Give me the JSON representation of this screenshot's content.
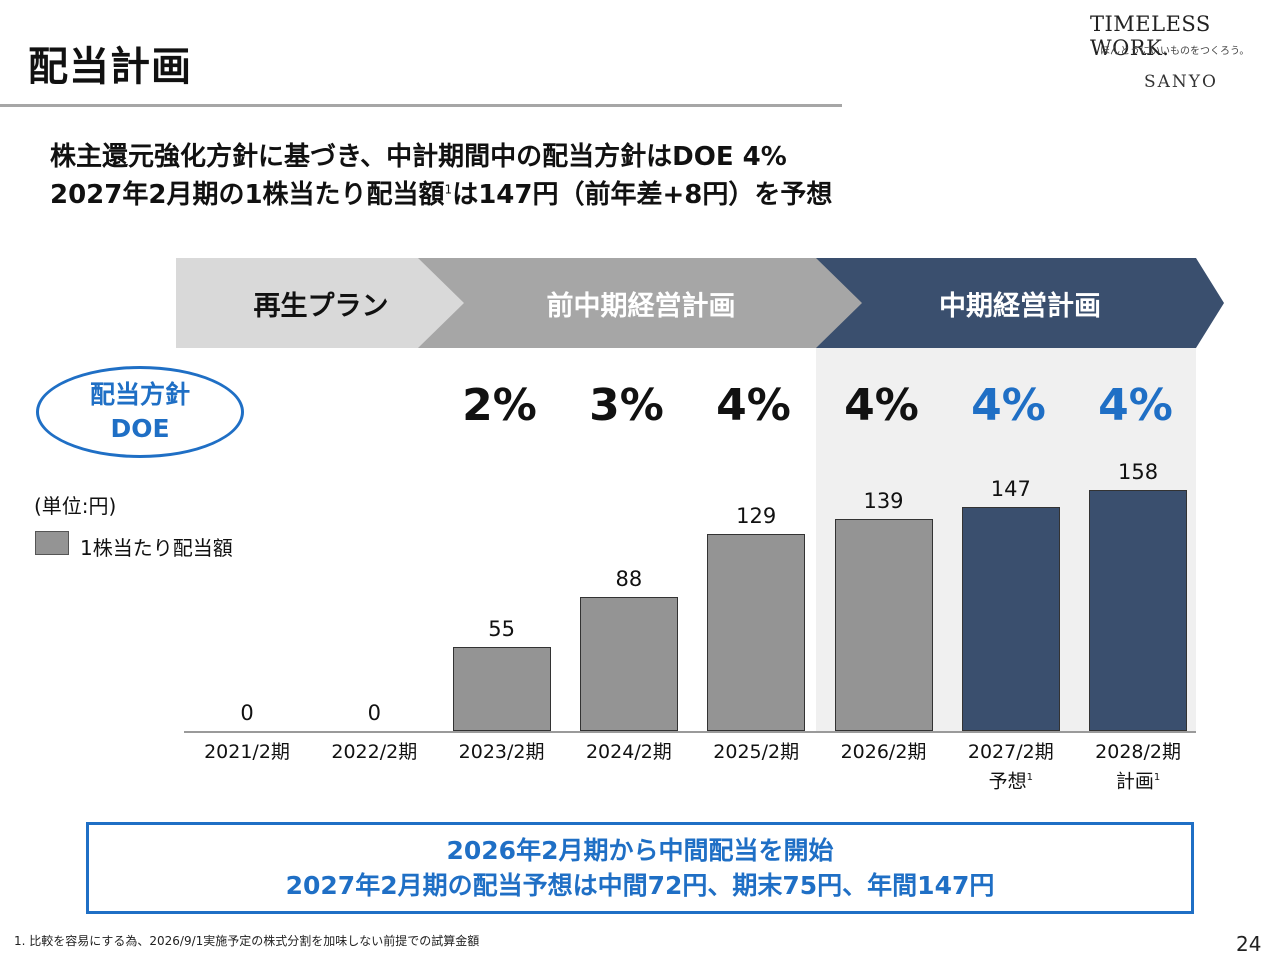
{
  "page": {
    "title": "配当計画",
    "page_number": "24",
    "footnote": "1. 比較を容易にする為、2026/9/1実施予定の株式分割を加味しない前提での試算金額"
  },
  "logo": {
    "brand": "TIMELESS WORK.",
    "tagline": "ほんとうにいいものをつくろう。",
    "company": "SANYO"
  },
  "headline": {
    "line1": "株主還元強化方針に基づき、中計期間中の配当方針はDOE 4%",
    "line2_part1": "2027年2月期の1株当たり配当額",
    "line2_sup": "1",
    "line2_part2": "は147円（前年差+8円）を予想"
  },
  "phases": [
    {
      "label": "再生プラン",
      "color": "#d9d9d9"
    },
    {
      "label": "前中期経営計画",
      "color": "#a6a6a6"
    },
    {
      "label": "中期経営計画",
      "color": "#3a4f6e"
    }
  ],
  "policy": {
    "line1": "配当方針",
    "line2": "DOE"
  },
  "unit_label": "(単位:円)",
  "legend_label": "1株当たり配当額",
  "doe_values": [
    {
      "value": "2%",
      "color": "#111111"
    },
    {
      "value": "3%",
      "color": "#111111"
    },
    {
      "value": "4%",
      "color": "#111111"
    },
    {
      "value": "4%",
      "color": "#111111"
    },
    {
      "value": "4%",
      "color": "#1f6fc5"
    },
    {
      "value": "4%",
      "color": "#1f6fc5"
    }
  ],
  "colors": {
    "bar_gray": "#949494",
    "bar_navy": "#3a4f6e",
    "accent_blue": "#1f6fc5"
  },
  "chart_data": {
    "type": "bar",
    "title": "",
    "categories": [
      "2021/2期",
      "2022/2期",
      "2023/2期",
      "2024/2期",
      "2025/2期",
      "2026/2期",
      "2027/2期",
      "2028/2期"
    ],
    "category_notes": [
      "",
      "",
      "",
      "",
      "",
      "",
      "予想",
      "計画"
    ],
    "category_note_sup": [
      "",
      "",
      "",
      "",
      "",
      "",
      "1",
      "1"
    ],
    "values": [
      0,
      0,
      55,
      88,
      129,
      139,
      147,
      158
    ],
    "value_labels": [
      "0",
      "0",
      "55",
      "88",
      "129",
      "139",
      "147",
      "158"
    ],
    "bar_colors": [
      "#949494",
      "#949494",
      "#949494",
      "#949494",
      "#949494",
      "#949494",
      "#3a4f6e",
      "#3a4f6e"
    ],
    "series_name": "1株当たり配当額",
    "ylim": [
      0,
      170
    ],
    "xlabel": "",
    "ylabel": "",
    "legend": "left"
  },
  "callout": {
    "line1": "2026年2月期から中間配当を開始",
    "line2": "2027年2月期の配当予想は中間72円、期末75円、年間147円"
  }
}
